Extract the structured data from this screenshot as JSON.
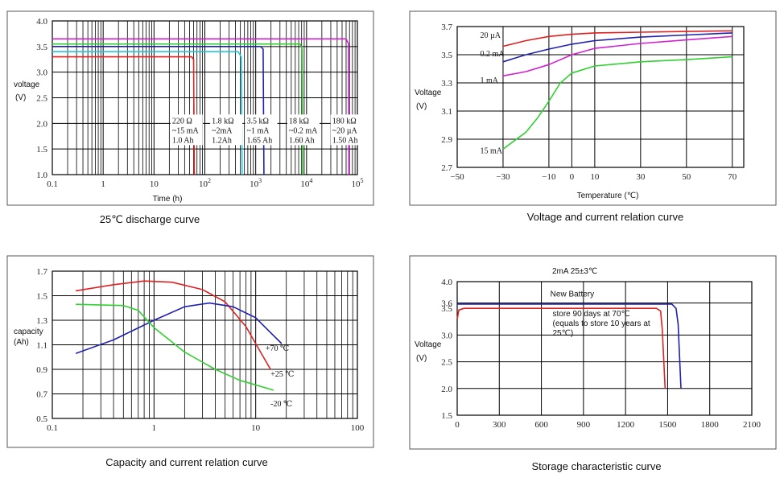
{
  "chart_data": [
    {
      "id": "discharge",
      "type": "line",
      "caption": "25℃ discharge curve",
      "xlabel": "Time (h)",
      "ylabel": [
        "voltage",
        "(V)"
      ],
      "xscale": "log",
      "xlim": [
        0.1,
        100000
      ],
      "ylim": [
        1.0,
        4.0
      ],
      "xticks": [
        {
          "v": 0.1,
          "base": "0.1",
          "exp": ""
        },
        {
          "v": 1,
          "base": "1",
          "exp": ""
        },
        {
          "v": 10,
          "base": "10",
          "exp": ""
        },
        {
          "v": 100,
          "base": "10",
          "exp": "2"
        },
        {
          "v": 1000,
          "base": "10",
          "exp": "3"
        },
        {
          "v": 10000,
          "base": "10",
          "exp": "4"
        },
        {
          "v": 100000,
          "base": "10",
          "exp": "5"
        }
      ],
      "yticks": [
        {
          "v": 1.0,
          "label": "1.0"
        },
        {
          "v": 1.5,
          "label": "1.5"
        },
        {
          "v": 2.0,
          "label": "2.0"
        },
        {
          "v": 2.5,
          "label": "2.5"
        },
        {
          "v": 3.0,
          "label": "3.0"
        },
        {
          "v": 3.5,
          "label": "3.5"
        },
        {
          "v": 4.0,
          "label": "4.0"
        }
      ],
      "ygrid": [
        1.0,
        1.5,
        2.0,
        2.5,
        3.0,
        3.5,
        4.0
      ],
      "series": [
        {
          "color": "#e02020",
          "points": [
            [
              0.1,
              3.3
            ],
            [
              55,
              3.3
            ],
            [
              60,
              3.25
            ],
            [
              62,
              1.0
            ]
          ]
        },
        {
          "color": "#20c8e0",
          "points": [
            [
              0.1,
              3.4
            ],
            [
              450,
              3.4
            ],
            [
              520,
              3.3
            ],
            [
              540,
              1.0
            ]
          ]
        },
        {
          "color": "#2020b0",
          "points": [
            [
              0.1,
              3.5
            ],
            [
              1250,
              3.5
            ],
            [
              1400,
              3.45
            ],
            [
              1450,
              1.0
            ]
          ]
        },
        {
          "color": "#30d030",
          "points": [
            [
              0.1,
              3.55
            ],
            [
              7500,
              3.55
            ],
            [
              8200,
              3.45
            ],
            [
              8400,
              1.0
            ]
          ]
        },
        {
          "color": "#d020d0",
          "points": [
            [
              0.1,
              3.65
            ],
            [
              60000,
              3.65
            ],
            [
              67000,
              3.55
            ],
            [
              68000,
              1.0
            ]
          ]
        }
      ],
      "annotations": [
        {
          "x": 63,
          "y": 2.0,
          "lines": [
            "220 Ω",
            "~15 mA",
            "1.0 Ah"
          ]
        },
        {
          "x": 380,
          "y": 2.0,
          "lines": [
            "1.8 kΩ",
            "~2mA",
            "1.2Ah"
          ]
        },
        {
          "x": 1850,
          "y": 2.0,
          "lines": [
            "3.5 kΩ",
            "~1 mA",
            "1.65 Ah"
          ]
        },
        {
          "x": 12500,
          "y": 2.0,
          "lines": [
            "18 kΩ",
            "~0.2 mA",
            "1.60 Ah"
          ]
        },
        {
          "x": 89000,
          "y": 2.0,
          "lines": [
            "180 kΩ",
            "~20 µA",
            "1.50 Ah"
          ]
        }
      ]
    },
    {
      "id": "voltage_temp",
      "type": "line",
      "caption": "Voltage and current relation curve",
      "xlabel": "Temperature (℃)",
      "ylabel": [
        "Voltage",
        "(V)"
      ],
      "xlim": [
        -50,
        75
      ],
      "ylim": [
        2.7,
        3.7
      ],
      "xticks": [
        {
          "v": -50,
          "label": "−50"
        },
        {
          "v": -30,
          "label": "−30"
        },
        {
          "v": -10,
          "label": "−10"
        },
        {
          "v": 0,
          "label": "0"
        },
        {
          "v": 10,
          "label": "10"
        },
        {
          "v": 30,
          "label": "30"
        },
        {
          "v": 50,
          "label": "50"
        },
        {
          "v": 70,
          "label": "70"
        }
      ],
      "yticks": [
        {
          "v": 2.7,
          "label": "2.7"
        },
        {
          "v": 2.9,
          "label": "2.9"
        },
        {
          "v": 3.1,
          "label": "3.1"
        },
        {
          "v": 3.3,
          "label": "3.3"
        },
        {
          "v": 3.5,
          "label": "3.5"
        },
        {
          "v": 3.7,
          "label": "3.7"
        }
      ],
      "series": [
        {
          "color": "#e02020",
          "points": [
            [
              -30,
              3.56
            ],
            [
              -20,
              3.6
            ],
            [
              -10,
              3.63
            ],
            [
              0,
              3.645
            ],
            [
              10,
              3.655
            ],
            [
              30,
              3.66
            ],
            [
              50,
              3.665
            ],
            [
              70,
              3.67
            ]
          ]
        },
        {
          "color": "#2020b0",
          "points": [
            [
              -30,
              3.45
            ],
            [
              -20,
              3.5
            ],
            [
              -10,
              3.54
            ],
            [
              0,
              3.575
            ],
            [
              10,
              3.6
            ],
            [
              30,
              3.625
            ],
            [
              50,
              3.64
            ],
            [
              70,
              3.655
            ]
          ]
        },
        {
          "color": "#d020d0",
          "points": [
            [
              -30,
              3.35
            ],
            [
              -20,
              3.38
            ],
            [
              -10,
              3.43
            ],
            [
              0,
              3.5
            ],
            [
              10,
              3.545
            ],
            [
              30,
              3.58
            ],
            [
              50,
              3.605
            ],
            [
              70,
              3.63
            ]
          ]
        },
        {
          "color": "#30d030",
          "points": [
            [
              -30,
              2.83
            ],
            [
              -20,
              2.95
            ],
            [
              -15,
              3.05
            ],
            [
              -10,
              3.17
            ],
            [
              -5,
              3.3
            ],
            [
              0,
              3.37
            ],
            [
              10,
              3.42
            ],
            [
              30,
              3.45
            ],
            [
              50,
              3.465
            ],
            [
              70,
              3.485
            ]
          ]
        }
      ],
      "annotations": [
        {
          "x": -40,
          "y": 3.62,
          "lines": [
            "20 µA"
          ]
        },
        {
          "x": -40,
          "y": 3.49,
          "lines": [
            "0.2 mA"
          ]
        },
        {
          "x": -40,
          "y": 3.3,
          "lines": [
            "1 mA"
          ]
        },
        {
          "x": -40,
          "y": 2.8,
          "lines": [
            "15 mA"
          ]
        }
      ]
    },
    {
      "id": "capacity_current",
      "type": "line",
      "caption": "Capacity and current relation curve",
      "xlabel": "",
      "ylabel": [
        "capacity",
        "(Ah)"
      ],
      "xscale": "log",
      "xlim": [
        0.1,
        100
      ],
      "ylim": [
        0.5,
        1.7
      ],
      "xticks": [
        {
          "v": 0.1,
          "label": "0.1"
        },
        {
          "v": 1,
          "label": "1"
        },
        {
          "v": 10,
          "label": "10"
        },
        {
          "v": 100,
          "label": "100"
        }
      ],
      "yticks": [
        {
          "v": 0.5,
          "label": "0.5"
        },
        {
          "v": 0.7,
          "label": "0.7"
        },
        {
          "v": 0.9,
          "label": "0.9"
        },
        {
          "v": 1.1,
          "label": "1.1"
        },
        {
          "v": 1.3,
          "label": "1.3"
        },
        {
          "v": 1.5,
          "label": "1.5"
        },
        {
          "v": 1.7,
          "label": "1.7"
        }
      ],
      "series": [
        {
          "color": "#e02020",
          "points": [
            [
              0.17,
              1.54
            ],
            [
              0.4,
              1.59
            ],
            [
              0.8,
              1.62
            ],
            [
              1.5,
              1.61
            ],
            [
              3,
              1.55
            ],
            [
              5,
              1.45
            ],
            [
              8,
              1.25
            ],
            [
              11,
              1.05
            ],
            [
              14,
              0.9
            ]
          ]
        },
        {
          "color": "#2020b0",
          "points": [
            [
              0.17,
              1.03
            ],
            [
              0.4,
              1.14
            ],
            [
              1,
              1.3
            ],
            [
              2,
              1.41
            ],
            [
              3.5,
              1.44
            ],
            [
              6,
              1.41
            ],
            [
              10,
              1.32
            ],
            [
              14,
              1.2
            ],
            [
              18,
              1.11
            ]
          ]
        },
        {
          "color": "#30d030",
          "points": [
            [
              0.17,
              1.43
            ],
            [
              0.5,
              1.42
            ],
            [
              0.7,
              1.38
            ],
            [
              1,
              1.24
            ],
            [
              2,
              1.04
            ],
            [
              4,
              0.9
            ],
            [
              7,
              0.81
            ],
            [
              15,
              0.73
            ]
          ]
        }
      ],
      "annotations": [
        {
          "x": 12.5,
          "y": 1.05,
          "lines": [
            "+70 ℃"
          ]
        },
        {
          "x": 14,
          "y": 0.84,
          "lines": [
            "+25 ℃"
          ]
        },
        {
          "x": 14,
          "y": 0.6,
          "lines": [
            "-20 ℃"
          ]
        }
      ]
    },
    {
      "id": "storage",
      "type": "line",
      "caption": "Storage characteristic curve",
      "title": "2mA 25±3℃",
      "xlabel": "",
      "ylabel": [
        "Voltage",
        "(V)"
      ],
      "xlim": [
        0,
        2100
      ],
      "ylim": [
        1.5,
        4.0
      ],
      "xticks": [
        {
          "v": 0,
          "label": "0"
        },
        {
          "v": 300,
          "label": "300"
        },
        {
          "v": 600,
          "label": "600"
        },
        {
          "v": 900,
          "label": "900"
        },
        {
          "v": 1200,
          "label": "1200"
        },
        {
          "v": 1500,
          "label": "1500"
        },
        {
          "v": 1800,
          "label": "1800"
        },
        {
          "v": 2100,
          "label": "2100"
        }
      ],
      "yticks": [
        {
          "v": 1.5,
          "label": "1.5"
        },
        {
          "v": 2.0,
          "label": "2.0"
        },
        {
          "v": 2.5,
          "label": "2.5"
        },
        {
          "v": 3.0,
          "label": "3.0"
        },
        {
          "v": 3.5,
          "label": "3.5"
        },
        {
          "v": 3.6,
          "label": "3.6"
        },
        {
          "v": 4.0,
          "label": "4.0"
        }
      ],
      "ygrid": [
        1.5,
        2.0,
        2.5,
        3.0,
        3.6,
        4.0
      ],
      "series": [
        {
          "color": "#2020b0",
          "points": [
            [
              0,
              3.58
            ],
            [
              1530,
              3.58
            ],
            [
              1560,
              3.5
            ],
            [
              1575,
              3.2
            ],
            [
              1595,
              2.0
            ]
          ]
        },
        {
          "color": "#e02020",
          "points": [
            [
              0,
              3.3
            ],
            [
              12,
              3.47
            ],
            [
              50,
              3.5
            ],
            [
              1420,
              3.5
            ],
            [
              1450,
              3.45
            ],
            [
              1462,
              3.1
            ],
            [
              1482,
              2.0
            ]
          ]
        }
      ],
      "annotations": [
        {
          "x": 820,
          "y": 3.72,
          "lines": [
            "New Battery"
          ],
          "font": "sans",
          "anchor": "middle"
        },
        {
          "x": 680,
          "y": 3.35,
          "lines": [
            "store 90 days at  70℃",
            "(equals to store 10 years at",
            "25℃)"
          ],
          "font": "sans"
        }
      ]
    }
  ]
}
